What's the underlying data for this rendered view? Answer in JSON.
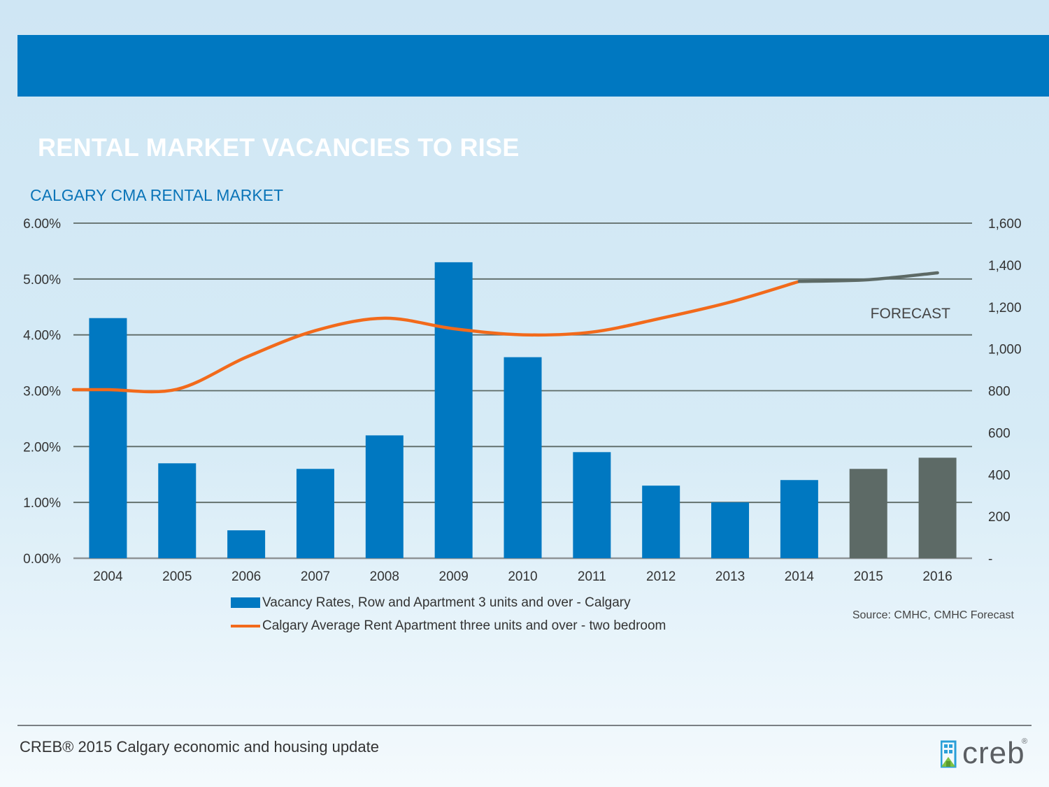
{
  "slide": {
    "title": "RENTAL MARKET VACANCIES TO RISE",
    "subtitle": "CALGARY CMA  RENTAL MARKET",
    "source": "Source: CMHC, CMHC Forecast",
    "footer": "CREB® 2015 Calgary economic and housing update",
    "logo_text": "creb",
    "logo_reg": "®"
  },
  "colors": {
    "banner": "#0078c1",
    "bar_actual": "#0078c1",
    "bar_forecast": "#5d6a66",
    "line_actual": "#f26a1b",
    "line_forecast": "#5d6a66",
    "subtitle": "#0a74b8"
  },
  "chart_data": {
    "type": "bar",
    "categories": [
      "2004",
      "2005",
      "2006",
      "2007",
      "2008",
      "2009",
      "2010",
      "2011",
      "2012",
      "2013",
      "2014",
      "2015",
      "2016"
    ],
    "forecast_from": "2015",
    "annotation": "FORECAST",
    "y_left": {
      "ylim": [
        0,
        6
      ],
      "ticks": [
        0,
        1,
        2,
        3,
        4,
        5,
        6
      ],
      "tick_labels": [
        "0.00%",
        "1.00%",
        "2.00%",
        "3.00%",
        "4.00%",
        "5.00%",
        "6.00%"
      ]
    },
    "y_right": {
      "ylim": [
        0,
        1600
      ],
      "ticks": [
        0,
        200,
        400,
        600,
        800,
        1000,
        1200,
        1400,
        1600
      ],
      "tick_labels": [
        "-",
        "200",
        "400",
        "600",
        "800",
        "1,000",
        "1,200",
        "1,400",
        "1,600"
      ]
    },
    "grid": true,
    "legend_position": "bottom",
    "series": [
      {
        "name": "Vacancy Rates, Row and Apartment 3 units and over - Calgary",
        "type": "bar",
        "axis": "left",
        "values": [
          4.3,
          1.7,
          0.5,
          1.6,
          2.2,
          5.3,
          3.6,
          1.9,
          1.3,
          1.0,
          1.4,
          1.6,
          1.8
        ]
      },
      {
        "name": "Calgary Average Rent Apartment three units and over - two bedroom",
        "type": "line",
        "axis": "right",
        "values": [
          805,
          807,
          960,
          1087,
          1146,
          1096,
          1067,
          1080,
          1146,
          1223,
          1322,
          1330,
          1363
        ]
      }
    ]
  }
}
